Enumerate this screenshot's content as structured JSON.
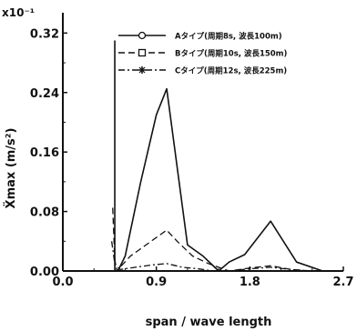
{
  "chart_data": {
    "type": "line",
    "title": "",
    "xlabel": "span / wave length",
    "ylabel": "Ẍmax (m/s²)",
    "y_scale_label": "x10⁻¹",
    "xlim": [
      0.0,
      2.7
    ],
    "ylim": [
      0.0,
      0.34
    ],
    "x_ticks": [
      "0.0",
      "0.9",
      "1.8",
      "2.7"
    ],
    "y_ticks": [
      "0.00",
      "0.08",
      "0.16",
      "0.24",
      "0.32"
    ],
    "x_tick_values": [
      0.0,
      0.9,
      1.8,
      2.7
    ],
    "y_tick_values": [
      0.0,
      0.08,
      0.16,
      0.24,
      0.32
    ],
    "grid": false,
    "legend_position": "top-right",
    "series": [
      {
        "name": "Aタイプ(周期8s, 波長100m)",
        "style": "solid",
        "marker": "circle",
        "x": [
          0.5,
          0.5,
          0.53,
          0.6,
          0.75,
          0.9,
          1.0,
          1.2,
          1.35,
          1.5,
          1.6,
          1.75,
          2.0,
          2.25,
          2.5
        ],
        "y": [
          0.31,
          0.0,
          0.0,
          0.02,
          0.12,
          0.21,
          0.245,
          0.035,
          0.02,
          0.0,
          0.012,
          0.022,
          0.067,
          0.012,
          0.0
        ]
      },
      {
        "name": "Bタイプ(周期10s, 波長150m)",
        "style": "dashed",
        "marker": "square",
        "x": [
          0.48,
          0.5,
          0.52,
          0.55,
          0.65,
          0.8,
          1.0,
          1.1,
          1.25,
          1.4,
          1.6,
          1.8,
          2.0,
          2.2,
          2.4
        ],
        "y": [
          0.085,
          0.015,
          0.0,
          0.005,
          0.02,
          0.035,
          0.055,
          0.04,
          0.02,
          0.01,
          0.0,
          0.004,
          0.007,
          0.002,
          0.0
        ]
      },
      {
        "name": "Cタイプ(周期12s, 波長225m)",
        "style": "dash-dot",
        "marker": "asterisk",
        "x": [
          0.47,
          0.5,
          0.55,
          0.7,
          0.85,
          1.0,
          1.15,
          1.3,
          1.45,
          1.6,
          1.8,
          2.0,
          2.2,
          2.4
        ],
        "y": [
          0.04,
          0.01,
          0.002,
          0.005,
          0.008,
          0.01,
          0.005,
          0.003,
          0.0,
          0.0,
          0.003,
          0.005,
          0.002,
          0.0
        ]
      }
    ]
  }
}
